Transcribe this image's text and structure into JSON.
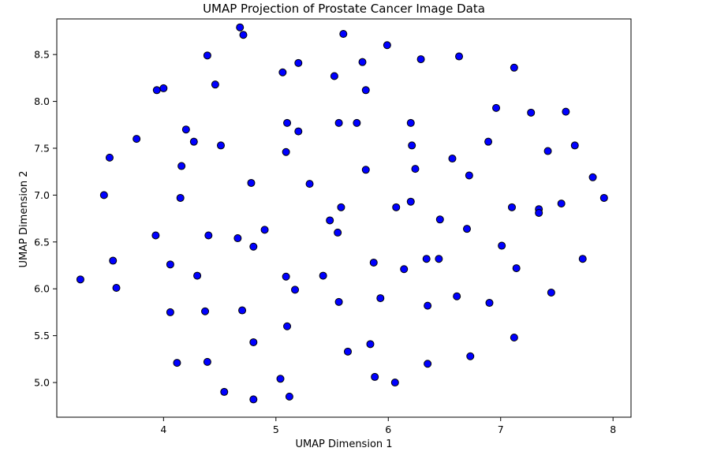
{
  "chart_data": {
    "type": "scatter",
    "title": "UMAP Projection of Prostate Cancer Image Data",
    "xlabel": "UMAP Dimension 1",
    "ylabel": "UMAP Dimension 2",
    "xlim": [
      3.05,
      8.16
    ],
    "ylim": [
      4.63,
      8.88
    ],
    "xticks": [
      4,
      5,
      6,
      7,
      8
    ],
    "yticks": [
      5.0,
      5.5,
      6.0,
      6.5,
      7.0,
      7.5,
      8.0,
      8.5
    ],
    "ytick_labels": [
      "5.0",
      "5.5",
      "6.0",
      "6.5",
      "7.0",
      "7.5",
      "8.0",
      "8.5"
    ],
    "grid": false,
    "marker_color": "#0000ff",
    "marker_edge_color": "#000000",
    "points": [
      [
        3.26,
        6.1
      ],
      [
        3.47,
        7.0
      ],
      [
        3.52,
        7.4
      ],
      [
        3.55,
        6.3
      ],
      [
        3.58,
        6.01
      ],
      [
        3.76,
        7.6
      ],
      [
        3.93,
        6.57
      ],
      [
        3.94,
        8.12
      ],
      [
        4.0,
        8.14
      ],
      [
        4.06,
        6.26
      ],
      [
        4.06,
        5.75
      ],
      [
        4.12,
        5.21
      ],
      [
        4.15,
        6.97
      ],
      [
        4.16,
        7.31
      ],
      [
        4.2,
        7.7
      ],
      [
        4.27,
        7.57
      ],
      [
        4.3,
        6.14
      ],
      [
        4.37,
        5.76
      ],
      [
        4.39,
        5.22
      ],
      [
        4.39,
        8.49
      ],
      [
        4.4,
        6.57
      ],
      [
        4.46,
        8.18
      ],
      [
        4.51,
        7.53
      ],
      [
        4.54,
        4.9
      ],
      [
        4.66,
        6.54
      ],
      [
        4.68,
        8.79
      ],
      [
        4.7,
        5.77
      ],
      [
        4.71,
        8.71
      ],
      [
        4.78,
        7.13
      ],
      [
        4.8,
        5.43
      ],
      [
        4.8,
        4.82
      ],
      [
        4.8,
        6.45
      ],
      [
        4.9,
        6.63
      ],
      [
        5.04,
        5.04
      ],
      [
        5.06,
        8.31
      ],
      [
        5.09,
        7.46
      ],
      [
        5.09,
        6.13
      ],
      [
        5.1,
        5.6
      ],
      [
        5.1,
        7.77
      ],
      [
        5.12,
        4.85
      ],
      [
        5.17,
        5.99
      ],
      [
        5.2,
        7.68
      ],
      [
        5.2,
        8.41
      ],
      [
        5.3,
        7.12
      ],
      [
        5.42,
        6.14
      ],
      [
        5.48,
        6.73
      ],
      [
        5.52,
        8.27
      ],
      [
        5.55,
        6.6
      ],
      [
        5.56,
        7.77
      ],
      [
        5.56,
        5.86
      ],
      [
        5.58,
        6.87
      ],
      [
        5.6,
        8.72
      ],
      [
        5.64,
        5.33
      ],
      [
        5.72,
        7.77
      ],
      [
        5.77,
        8.42
      ],
      [
        5.8,
        7.27
      ],
      [
        5.8,
        8.12
      ],
      [
        5.84,
        5.41
      ],
      [
        5.87,
        6.28
      ],
      [
        5.88,
        5.06
      ],
      [
        5.93,
        5.9
      ],
      [
        5.99,
        8.6
      ],
      [
        6.06,
        5.0
      ],
      [
        6.07,
        6.87
      ],
      [
        6.14,
        6.21
      ],
      [
        6.2,
        6.93
      ],
      [
        6.2,
        7.77
      ],
      [
        6.21,
        7.53
      ],
      [
        6.24,
        7.28
      ],
      [
        6.29,
        8.45
      ],
      [
        6.34,
        6.32
      ],
      [
        6.35,
        5.82
      ],
      [
        6.35,
        5.2
      ],
      [
        6.45,
        6.32
      ],
      [
        6.46,
        6.74
      ],
      [
        6.57,
        7.39
      ],
      [
        6.61,
        5.92
      ],
      [
        6.63,
        8.48
      ],
      [
        6.7,
        6.64
      ],
      [
        6.72,
        7.21
      ],
      [
        6.73,
        5.28
      ],
      [
        6.89,
        7.57
      ],
      [
        6.9,
        5.85
      ],
      [
        6.96,
        7.93
      ],
      [
        7.01,
        6.46
      ],
      [
        7.1,
        6.87
      ],
      [
        7.12,
        8.36
      ],
      [
        7.12,
        5.48
      ],
      [
        7.14,
        6.22
      ],
      [
        7.27,
        7.88
      ],
      [
        7.34,
        6.85
      ],
      [
        7.34,
        6.81
      ],
      [
        7.42,
        7.47
      ],
      [
        7.45,
        5.96
      ],
      [
        7.54,
        6.91
      ],
      [
        7.58,
        7.89
      ],
      [
        7.66,
        7.53
      ],
      [
        7.73,
        6.32
      ],
      [
        7.82,
        7.19
      ],
      [
        7.92,
        6.97
      ]
    ]
  }
}
